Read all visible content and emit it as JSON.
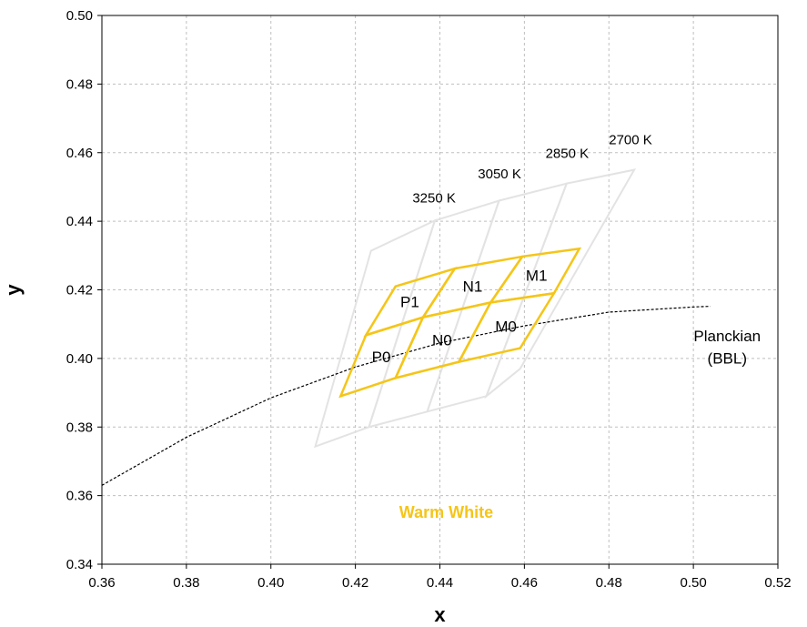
{
  "chart_data": {
    "type": "scatter",
    "xlabel": "x",
    "ylabel": "y",
    "xlim": [
      0.36,
      0.52
    ],
    "ylim": [
      0.34,
      0.5
    ],
    "x_ticks": [
      "0.36",
      "0.38",
      "0.40",
      "0.42",
      "0.44",
      "0.46",
      "0.48",
      "0.50",
      "0.52"
    ],
    "y_ticks": [
      "0.34",
      "0.36",
      "0.38",
      "0.40",
      "0.42",
      "0.44",
      "0.46",
      "0.48",
      "0.50"
    ],
    "grid": true,
    "colors": {
      "bins": "#F5C518",
      "ansi": "#E3E3E3",
      "planckian": "#000000",
      "grid": "#BFBFBF"
    },
    "planckian_locus": {
      "label_line1": "Planckian",
      "label_line2": "(BBL)",
      "x": [
        0.36,
        0.38,
        0.4,
        0.42,
        0.44,
        0.46,
        0.48,
        0.5,
        0.504
      ],
      "y": [
        0.363,
        0.377,
        0.3885,
        0.3975,
        0.4045,
        0.4095,
        0.4135,
        0.415,
        0.4152
      ]
    },
    "ansi_quadrangles": [
      {
        "name": "3250 K",
        "points": [
          [
            0.4105,
            0.3743
          ],
          [
            0.4232,
            0.38
          ],
          [
            0.4388,
            0.4402
          ],
          [
            0.4237,
            0.4314
          ]
        ]
      },
      {
        "name": "3050 K",
        "points": [
          [
            0.4232,
            0.38
          ],
          [
            0.437,
            0.3845
          ],
          [
            0.454,
            0.446
          ],
          [
            0.4388,
            0.4402
          ]
        ]
      },
      {
        "name": "2850 K",
        "points": [
          [
            0.437,
            0.3845
          ],
          [
            0.451,
            0.389
          ],
          [
            0.47,
            0.451
          ],
          [
            0.454,
            0.446
          ]
        ]
      },
      {
        "name": "2700 K",
        "points": [
          [
            0.451,
            0.389
          ],
          [
            0.459,
            0.397
          ],
          [
            0.486,
            0.455
          ],
          [
            0.47,
            0.451
          ]
        ]
      }
    ],
    "cct_labels": [
      "3250 K",
      "3050 K",
      "2850 K",
      "2700 K"
    ],
    "bins": [
      {
        "name": "P0",
        "points": [
          [
            0.4165,
            0.389
          ],
          [
            0.4295,
            0.3943
          ],
          [
            0.436,
            0.412
          ],
          [
            0.4225,
            0.4068
          ]
        ]
      },
      {
        "name": "N0",
        "points": [
          [
            0.4295,
            0.3943
          ],
          [
            0.4445,
            0.399
          ],
          [
            0.452,
            0.4163
          ],
          [
            0.436,
            0.412
          ]
        ]
      },
      {
        "name": "M0",
        "points": [
          [
            0.4445,
            0.399
          ],
          [
            0.459,
            0.403
          ],
          [
            0.467,
            0.419
          ],
          [
            0.452,
            0.4163
          ]
        ]
      },
      {
        "name": "P1",
        "points": [
          [
            0.4225,
            0.4068
          ],
          [
            0.436,
            0.412
          ],
          [
            0.4435,
            0.4262
          ],
          [
            0.4295,
            0.421
          ]
        ]
      },
      {
        "name": "N1",
        "points": [
          [
            0.436,
            0.412
          ],
          [
            0.452,
            0.4163
          ],
          [
            0.4595,
            0.4297
          ],
          [
            0.4435,
            0.4262
          ]
        ]
      },
      {
        "name": "M1",
        "points": [
          [
            0.452,
            0.4163
          ],
          [
            0.467,
            0.419
          ],
          [
            0.473,
            0.432
          ],
          [
            0.4595,
            0.4297
          ]
        ]
      }
    ],
    "region_label": "Warm White"
  }
}
